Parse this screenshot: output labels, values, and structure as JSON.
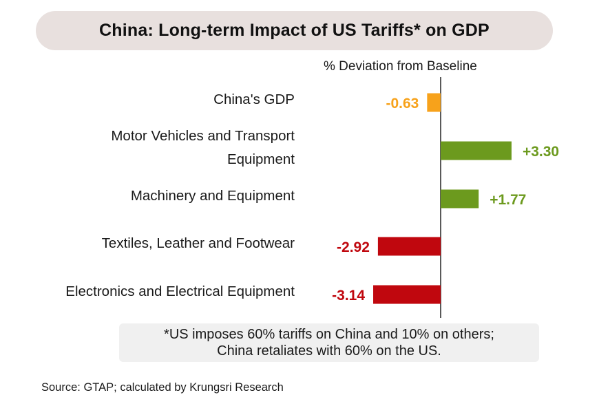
{
  "title": "China: Long-term Impact of US Tariffs* on GDP",
  "footnote": {
    "line1": "*US imposes 60% tariffs on China and 10% on others;",
    "line2": "China retaliates with 60% on the US."
  },
  "source": "Source: GTAP; calculated by Krungsri Research",
  "colors": {
    "gdp": "#f7a21b",
    "positive": "#6c9a1e",
    "negative": "#c0070e",
    "axis": "#222222"
  },
  "chart_data": {
    "type": "bar",
    "orientation": "horizontal",
    "axis_title": "% Deviation from Baseline",
    "categories": [
      [
        "China's GDP"
      ],
      [
        "Motor Vehicles and Transport",
        "Equipment"
      ],
      [
        "Machinery and Equipment"
      ],
      [
        "Textiles, Leather and Footwear"
      ],
      [
        "Electronics and Electrical Equipment"
      ]
    ],
    "values": [
      -0.63,
      3.3,
      1.77,
      -2.92,
      -3.14
    ],
    "data_labels": [
      "-0.63",
      "+3.30",
      "+1.77",
      "-2.92",
      "-3.14"
    ],
    "bar_color_keys": [
      "gdp",
      "positive",
      "positive",
      "negative",
      "negative"
    ],
    "grid": false,
    "legend": "none"
  }
}
